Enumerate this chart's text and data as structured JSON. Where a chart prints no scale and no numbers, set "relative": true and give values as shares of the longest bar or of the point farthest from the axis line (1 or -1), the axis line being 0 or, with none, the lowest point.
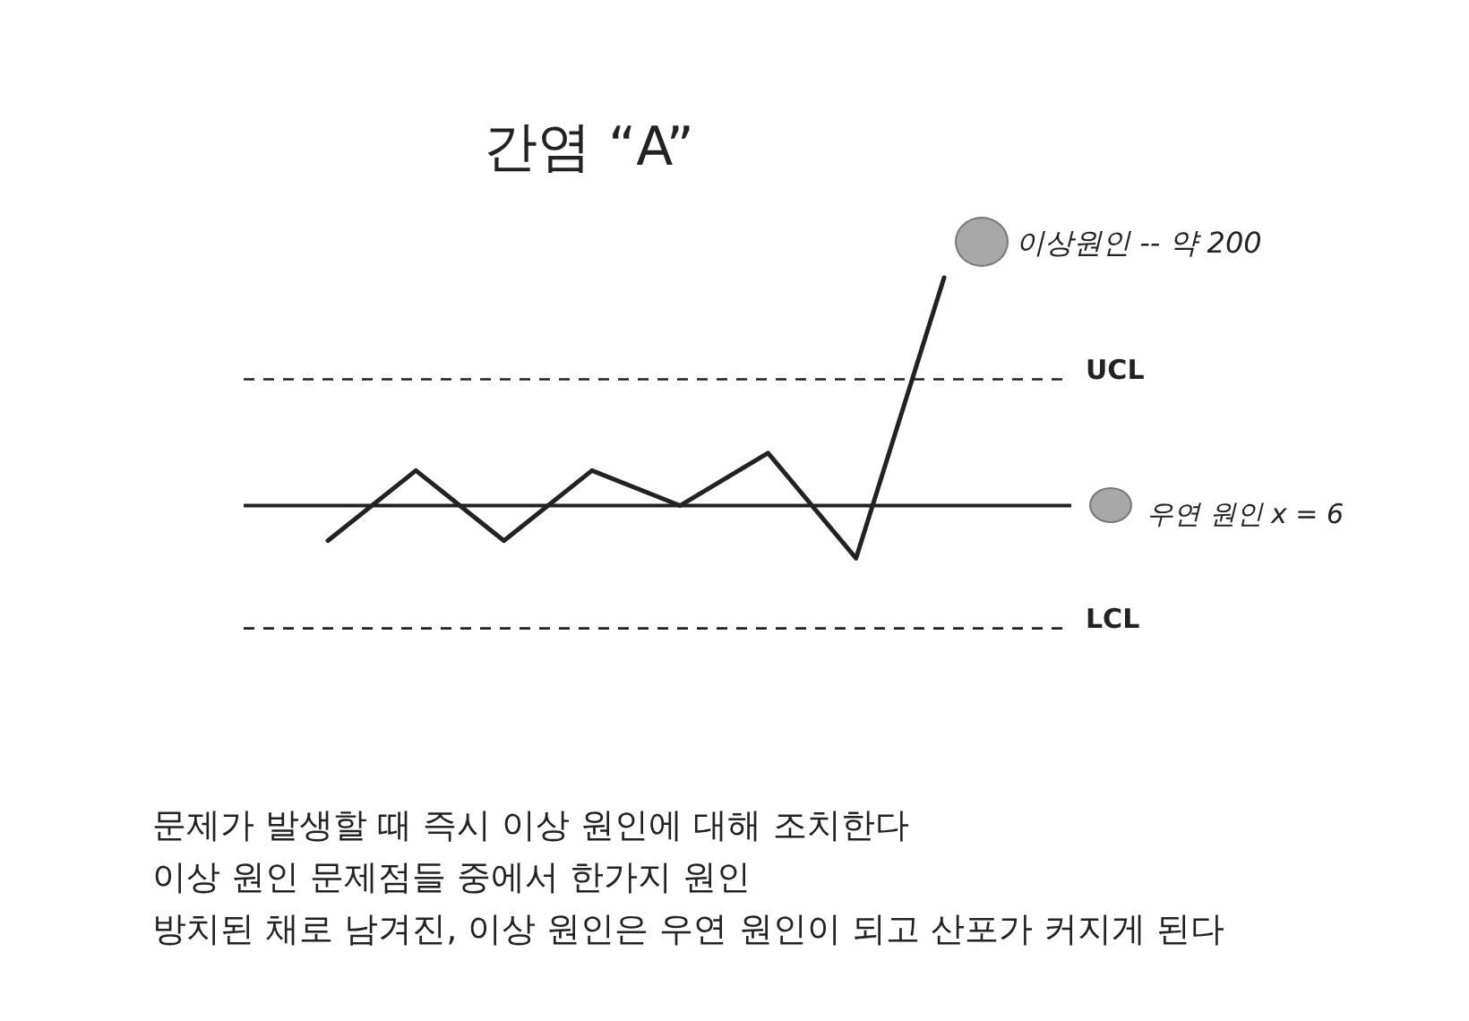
{
  "chart_data": {
    "type": "line",
    "title": "간염 “A”",
    "categories": [
      null,
      null,
      null,
      null,
      null,
      null,
      null,
      null
    ],
    "series": [
      {
        "color": "#222222",
        "values": [
          0.25,
          0.45,
          0.25,
          0.45,
          0.35,
          0.5,
          0.2,
          1
        ]
      }
    ],
    "relative": true,
    "marker": "none",
    "line_style": "solid",
    "legend": false,
    "grid": false,
    "ref_lines": [
      {
        "axis": "y",
        "value": 0.71,
        "label": "UCL",
        "line_style": "dashed",
        "color": "#222222"
      },
      {
        "axis": "y",
        "value": 0.35,
        "line_style": "solid",
        "color": "#222222"
      },
      {
        "axis": "y",
        "value": 0,
        "label": "LCL",
        "line_style": "dashed",
        "color": "#222222"
      }
    ],
    "annotations": [
      "이상원인 -- 약 200",
      "우연 원인 x = 6",
      "문제가 발생할 때 즉시 이상 원인에 대해 조치한다",
      "이상 원인 문제점들 중에서 한가지 원인",
      "방치된 채로 남겨진, 이상 원인은 우연 원인이 되고 산포가 커지게 된다"
    ]
  }
}
